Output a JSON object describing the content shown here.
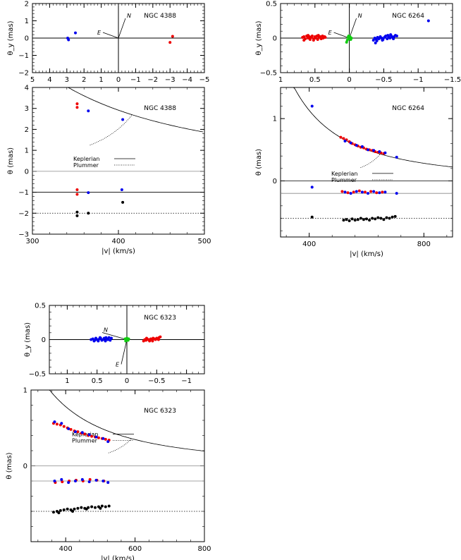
{
  "chart_data": [
    {
      "id": "ngc4388-sky",
      "type": "scatter",
      "title": "NGC 4388",
      "xlabel": "",
      "ylabel": "θ_y (mas)",
      "xlim": [
        5,
        -5
      ],
      "ylim": [
        -2,
        2
      ],
      "xticks": [
        "5",
        "4",
        "3",
        "2",
        "1",
        "0",
        "−1",
        "−2",
        "−3",
        "−4",
        "−5"
      ],
      "yticks": [
        "2",
        "1",
        "0",
        "−1",
        "−2"
      ],
      "compass": {
        "north_label": "N",
        "east_label": "E"
      },
      "series": [
        {
          "color": "#0000ee",
          "x": [
            2.9,
            2.95,
            2.5
          ],
          "y": [
            -0.1,
            0.0,
            0.3
          ]
        },
        {
          "color": "#ee0000",
          "x": [
            -3.0,
            -3.15
          ],
          "y": [
            -0.25,
            0.1
          ]
        }
      ]
    },
    {
      "id": "ngc6264-sky",
      "type": "scatter",
      "title": "NGC 6264",
      "xlabel": "",
      "ylabel": "θ_y (mas)",
      "xlim": [
        1,
        -1.5
      ],
      "ylim": [
        -0.5,
        0.5
      ],
      "xticks": [
        "1",
        "0.5",
        "0",
        "−0.5",
        "−1",
        "−1.5"
      ],
      "yticks": [
        "0.5",
        "0",
        "−0.5"
      ],
      "compass": {
        "north_label": "N",
        "east_label": "E"
      },
      "series": [
        {
          "color": "#ee0000",
          "x": [
            0.68,
            0.66,
            0.64,
            0.62,
            0.6,
            0.58,
            0.57,
            0.55,
            0.54,
            0.52,
            0.5,
            0.49,
            0.47,
            0.46,
            0.44,
            0.42,
            0.41,
            0.39,
            0.38,
            0.36,
            0.35,
            0.66,
            0.6,
            0.52,
            0.45
          ],
          "y": [
            0.01,
            0.02,
            -0.01,
            0.03,
            0.0,
            0.02,
            -0.02,
            0.01,
            0.03,
            -0.01,
            0.02,
            0.0,
            0.03,
            -0.02,
            0.01,
            0.02,
            -0.01,
            0.03,
            0.0,
            0.02,
            0.01,
            -0.03,
            0.04,
            -0.03,
            0.04
          ]
        },
        {
          "color": "#0000ee",
          "x": [
            -0.35,
            -0.37,
            -0.39,
            -0.41,
            -0.43,
            -0.45,
            -0.47,
            -0.49,
            -0.51,
            -0.53,
            -0.55,
            -0.57,
            -0.59,
            -0.61,
            -0.63,
            -0.65,
            -0.67,
            -0.69,
            -0.4,
            -0.48,
            -0.56,
            -0.64,
            -0.38,
            -0.52,
            -0.6,
            -1.15
          ],
          "y": [
            -0.03,
            0.0,
            -0.02,
            0.01,
            -0.01,
            0.02,
            0.0,
            -0.02,
            0.01,
            0.03,
            -0.01,
            0.02,
            0.0,
            0.03,
            0.01,
            0.02,
            0.04,
            0.03,
            -0.04,
            -0.03,
            0.04,
            -0.01,
            -0.07,
            0.02,
            0.05,
            0.25
          ]
        },
        {
          "color": "#11cc11",
          "x": [
            0.02,
            -0.01,
            0.0,
            0.03,
            -0.03,
            0.01,
            0.04,
            -0.02
          ],
          "y": [
            0.01,
            0.02,
            -0.01,
            -0.03,
            0.0,
            0.03,
            -0.06,
            -0.02
          ]
        }
      ]
    },
    {
      "id": "ngc4388-rotation",
      "type": "scatter",
      "title": "NGC 4388",
      "xlabel": "|v| (km/s)",
      "ylabel": "θ (mas)",
      "xlim": [
        300,
        500
      ],
      "ylim": [
        -3,
        4
      ],
      "xticks": [
        "300",
        "400",
        "500"
      ],
      "yticks": [
        "4",
        "3",
        "2",
        "1",
        "0",
        "−1",
        "−2",
        "−3"
      ],
      "legend": [
        {
          "label": "Keplerian",
          "style": "solid"
        },
        {
          "label": "Plummer",
          "style": "dotted"
        }
      ],
      "reference_lines": [
        {
          "y": 0,
          "style": "solid-light"
        },
        {
          "y": -1,
          "style": "solid"
        },
        {
          "y": -2,
          "style": "dotted"
        }
      ],
      "series": [
        {
          "color": "#0000ee",
          "x": [
            365,
            405,
            365,
            404
          ],
          "y": [
            2.88,
            2.47,
            -1.02,
            -0.88
          ]
        },
        {
          "color": "#ee0000",
          "x": [
            352,
            352,
            352,
            352
          ],
          "y": [
            3.22,
            3.05,
            -0.88,
            -1.1
          ]
        },
        {
          "color": "#000000",
          "x": [
            352,
            352,
            365,
            405
          ],
          "y": [
            -1.95,
            -2.12,
            -2.0,
            -1.48
          ]
        }
      ]
    },
    {
      "id": "ngc6264-rotation",
      "type": "scatter",
      "title": "NGC 6264",
      "xlabel": "|v| (km/s)",
      "ylabel": "θ (mas)",
      "xlim": [
        300,
        900
      ],
      "ylim": [
        -0.9,
        1.5
      ],
      "xticks": [
        "400",
        "800"
      ],
      "yticks": [
        "1",
        "0"
      ],
      "legend": [
        {
          "label": "Keplerian",
          "style": "solid"
        },
        {
          "label": "Plummer",
          "style": "dotted"
        }
      ],
      "reference_lines": [
        {
          "y": 0,
          "style": "solid"
        },
        {
          "y": -0.2,
          "style": "solid-light"
        },
        {
          "y": -0.6,
          "style": "dotted"
        }
      ],
      "series": [
        {
          "color": "#ee0000",
          "x": [
            510,
            520,
            530,
            540,
            550,
            560,
            570,
            580,
            590,
            600,
            610,
            620,
            630,
            640,
            650,
            660,
            515,
            535,
            555,
            575,
            595,
            615,
            635,
            655
          ],
          "y": [
            0.7,
            0.68,
            0.66,
            0.63,
            0.6,
            0.58,
            0.56,
            0.54,
            0.53,
            0.51,
            0.5,
            0.49,
            0.47,
            0.46,
            0.45,
            0.44,
            -0.17,
            -0.19,
            -0.18,
            -0.16,
            -0.18,
            -0.17,
            -0.19,
            -0.18
          ]
        },
        {
          "color": "#0000ee",
          "x": [
            410,
            525,
            545,
            565,
            585,
            605,
            625,
            645,
            665,
            705,
            410,
            525,
            545,
            565,
            585,
            605,
            625,
            645,
            665,
            705
          ],
          "y": [
            1.2,
            0.64,
            0.61,
            0.57,
            0.55,
            0.5,
            0.49,
            0.47,
            0.45,
            0.38,
            -0.1,
            -0.18,
            -0.2,
            -0.17,
            -0.18,
            -0.2,
            -0.17,
            -0.19,
            -0.18,
            -0.2
          ]
        },
        {
          "color": "#000000",
          "x": [
            410,
            520,
            530,
            540,
            550,
            560,
            570,
            580,
            590,
            600,
            610,
            620,
            630,
            640,
            650,
            660,
            670,
            680,
            690,
            700
          ],
          "y": [
            -0.58,
            -0.63,
            -0.62,
            -0.64,
            -0.61,
            -0.63,
            -0.62,
            -0.6,
            -0.62,
            -0.61,
            -0.63,
            -0.6,
            -0.61,
            -0.59,
            -0.6,
            -0.62,
            -0.59,
            -0.6,
            -0.58,
            -0.57
          ]
        }
      ]
    },
    {
      "id": "ngc6323-sky",
      "type": "scatter",
      "title": "NGC 6323",
      "xlabel": "",
      "ylabel": "θ_y (mas)",
      "xlim": [
        1.3,
        -1.3
      ],
      "ylim": [
        -0.5,
        0.5
      ],
      "xticks": [
        "1",
        "0.5",
        "0",
        "−0.5",
        "−1"
      ],
      "yticks": [
        "0.5",
        "0",
        "−0.5"
      ],
      "compass": {
        "north_label": "N",
        "east_label": "E"
      },
      "series": [
        {
          "color": "#0000ee",
          "x": [
            0.6,
            0.57,
            0.54,
            0.52,
            0.5,
            0.48,
            0.46,
            0.44,
            0.42,
            0.4,
            0.38,
            0.36,
            0.34,
            0.32,
            0.3,
            0.28,
            0.26,
            0.55,
            0.45,
            0.35
          ],
          "y": [
            0.0,
            0.01,
            -0.01,
            0.02,
            0.0,
            -0.02,
            0.01,
            0.02,
            -0.01,
            0.0,
            0.02,
            -0.02,
            0.01,
            0.0,
            0.03,
            -0.01,
            0.02,
            -0.02,
            0.03,
            0.03
          ]
        },
        {
          "color": "#ee0000",
          "x": [
            -0.28,
            -0.3,
            -0.32,
            -0.34,
            -0.36,
            -0.38,
            -0.4,
            -0.42,
            -0.44,
            -0.46,
            -0.48,
            -0.5,
            -0.52,
            -0.54,
            -0.56,
            -0.33,
            -0.43,
            -0.53
          ],
          "y": [
            -0.02,
            0.0,
            -0.01,
            0.01,
            0.0,
            -0.02,
            0.01,
            0.0,
            0.02,
            0.01,
            0.0,
            0.02,
            0.01,
            0.03,
            0.04,
            0.02,
            -0.02,
            0.0
          ]
        },
        {
          "color": "#11cc11",
          "x": [
            0.03,
            0.0,
            -0.02,
            0.01,
            -0.03,
            0.02
          ],
          "y": [
            0.01,
            0.02,
            -0.01,
            0.0,
            0.01,
            -0.02
          ]
        }
      ]
    },
    {
      "id": "ngc6323-rotation",
      "type": "scatter",
      "title": "NGC 6323",
      "xlabel": "|v| (km/s)",
      "ylabel": "θ (mas)",
      "xlim": [
        300,
        800
      ],
      "ylim": [
        -1,
        1
      ],
      "xticks": [
        "400",
        "600",
        "800"
      ],
      "yticks": [
        "1",
        "0"
      ],
      "legend": [
        {
          "label": "Keplerian",
          "style": "solid"
        },
        {
          "label": "Plummer",
          "style": "dotted"
        }
      ],
      "reference_lines": [
        {
          "y": 0,
          "style": "solid-light"
        },
        {
          "y": -0.2,
          "style": "solid-light"
        },
        {
          "y": -0.6,
          "style": "dotted"
        }
      ],
      "series": [
        {
          "color": "#ee0000",
          "x": [
            365,
            375,
            385,
            395,
            405,
            415,
            425,
            435,
            445,
            455,
            465,
            475,
            485,
            495,
            505,
            515,
            525,
            370,
            390,
            410,
            430,
            450,
            470,
            490,
            510
          ],
          "y": [
            0.56,
            0.55,
            0.54,
            0.52,
            0.5,
            0.48,
            0.46,
            0.45,
            0.43,
            0.42,
            0.4,
            0.39,
            0.38,
            0.37,
            0.36,
            0.35,
            0.34,
            -0.22,
            -0.21,
            -0.2,
            -0.19,
            -0.2,
            -0.18,
            -0.19,
            -0.2
          ]
        },
        {
          "color": "#0000ee",
          "x": [
            368,
            388,
            408,
            428,
            448,
            468,
            488,
            508,
            522,
            368,
            388,
            408,
            428,
            448,
            468,
            488,
            508,
            522
          ],
          "y": [
            0.58,
            0.56,
            0.49,
            0.45,
            0.44,
            0.41,
            0.38,
            0.36,
            0.32,
            -0.2,
            -0.18,
            -0.22,
            -0.2,
            -0.18,
            -0.21,
            -0.19,
            -0.2,
            -0.22
          ]
        },
        {
          "color": "#000000",
          "x": [
            365,
            375,
            385,
            395,
            405,
            415,
            425,
            435,
            445,
            455,
            465,
            475,
            485,
            495,
            505,
            515,
            525,
            380,
            420,
            460,
            500
          ],
          "y": [
            -0.61,
            -0.6,
            -0.59,
            -0.58,
            -0.57,
            -0.58,
            -0.57,
            -0.56,
            -0.55,
            -0.56,
            -0.55,
            -0.54,
            -0.55,
            -0.54,
            -0.53,
            -0.54,
            -0.53,
            -0.62,
            -0.6,
            -0.57,
            -0.56
          ]
        }
      ]
    }
  ]
}
